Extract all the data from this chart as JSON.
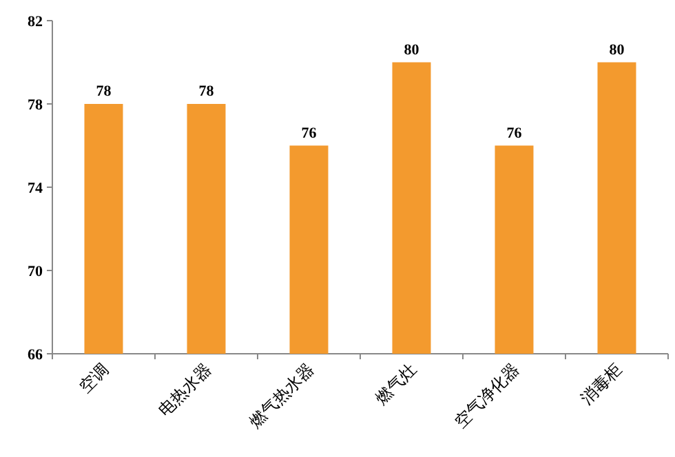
{
  "chart_data": {
    "type": "bar",
    "categories": [
      "空调",
      "电热水器",
      "燃气热水器",
      "燃气灶",
      "空气净化器",
      "消毒柜"
    ],
    "values": [
      78,
      78,
      76,
      80,
      76,
      80
    ],
    "color": "#f39a2e",
    "ylim": [
      66,
      82
    ],
    "yticks": [
      66,
      70,
      74,
      78,
      82
    ],
    "data_labels": true
  }
}
